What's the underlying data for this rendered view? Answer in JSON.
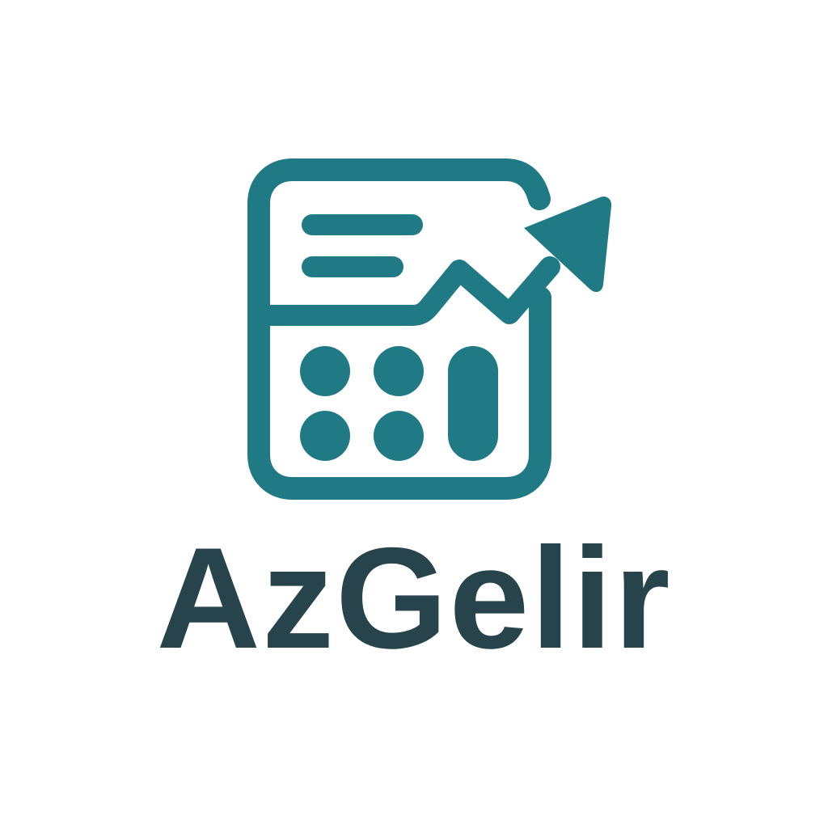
{
  "brand": {
    "name": "AzGelir",
    "icon": "calculator-growth-arrow-icon",
    "colors": {
      "accent": "#1f7a85",
      "text": "#27434c",
      "background": "#ffffff"
    }
  }
}
